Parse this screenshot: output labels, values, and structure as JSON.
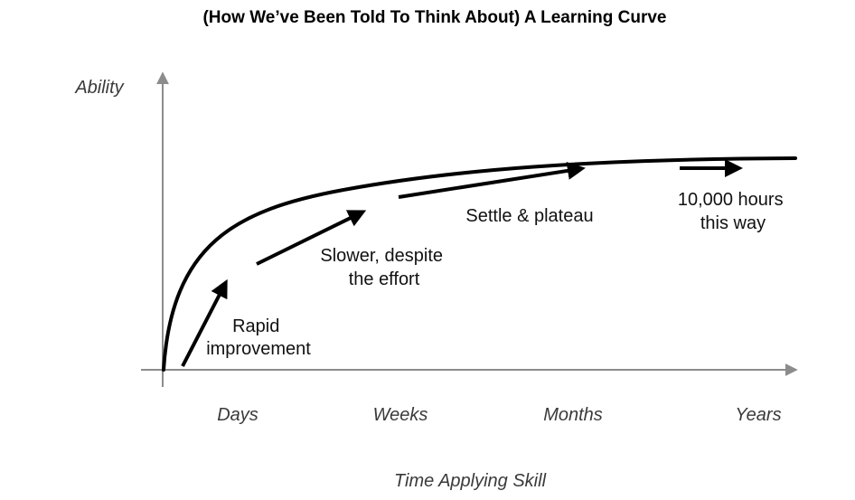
{
  "title": "(How We’ve Been Told To Think About) A Learning Curve",
  "y_axis_label": "Ability",
  "x_axis_label": "Time Applying Skill",
  "x_ticks": [
    "Days",
    "Weeks",
    "Months",
    "Years"
  ],
  "annotations": [
    {
      "lines": [
        "Rapid",
        "improvement"
      ]
    },
    {
      "lines": [
        "Slower, despite",
        "the effort"
      ]
    },
    {
      "lines": [
        "Settle & plateau"
      ]
    },
    {
      "lines": [
        "10,000 hours",
        "this way"
      ]
    }
  ],
  "colors": {
    "curve": "#000000",
    "axis": "#8c8c8c",
    "arrow": "#000000"
  }
}
